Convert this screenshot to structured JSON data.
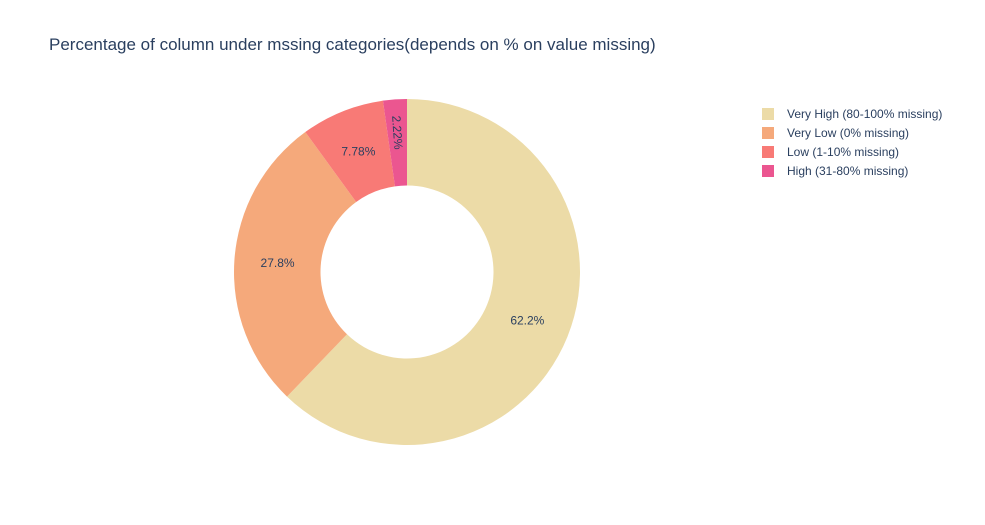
{
  "chart_data": {
    "type": "pie",
    "hole": 0.5,
    "title": "Percentage of column under mssing categories(depends on % on value missing)",
    "legend_position": "top-right",
    "slices": [
      {
        "label": "Very High (80-100% missing)",
        "value": 62.2,
        "text": "62.2%",
        "color": "#ecdba7"
      },
      {
        "label": "Very Low (0% missing)",
        "value": 27.8,
        "text": "27.8%",
        "color": "#f5a97b"
      },
      {
        "label": "Low (1-10% missing)",
        "value": 7.78,
        "text": "7.78%",
        "color": "#f87a76"
      },
      {
        "label": "High (31-80% missing)",
        "value": 2.22,
        "text": "2.22%",
        "color": "#eb5690"
      }
    ]
  }
}
